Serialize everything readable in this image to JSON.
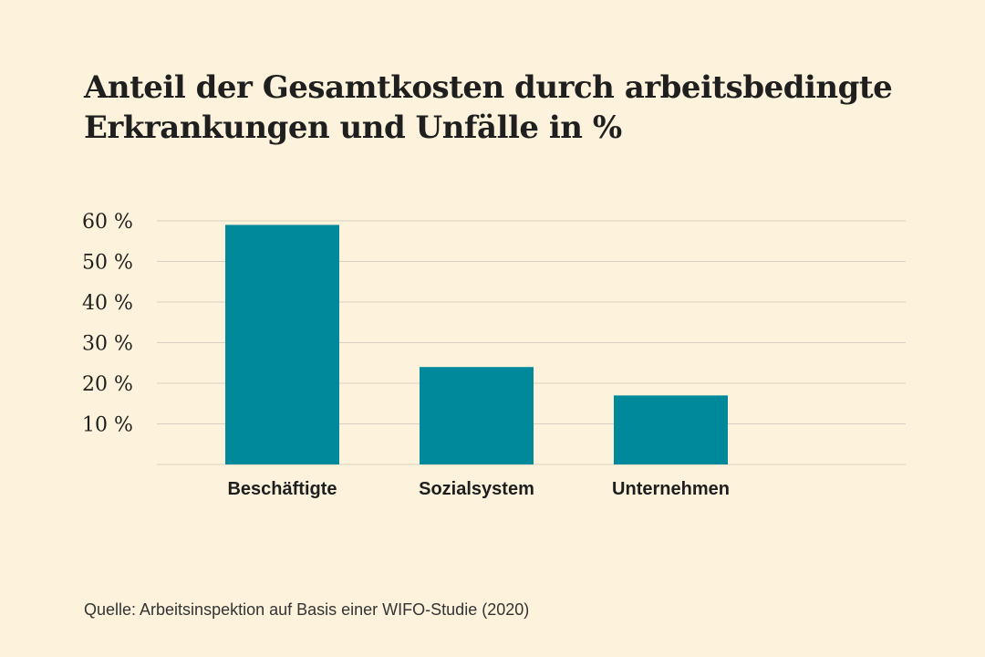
{
  "chart_data": {
    "type": "bar",
    "title": "Anteil der Gesamtkosten durch arbeitsbedingte Erkrankungen und Unfälle in %",
    "categories": [
      "Beschäftigte",
      "Sozialsystem",
      "Unternehmen"
    ],
    "values": [
      59,
      24,
      17
    ],
    "ylim": [
      0,
      60
    ],
    "yticks": [
      10,
      20,
      30,
      40,
      50,
      60
    ],
    "ytick_labels": [
      "10 %",
      "20 %",
      "30 %",
      "40 %",
      "50 %",
      "60 %"
    ],
    "xlabel": "",
    "ylabel": "",
    "grid": true,
    "bar_color": "#00899a",
    "grid_color": "#d6d0c2",
    "source": "Quelle: Arbeitsinspektion auf Basis einer WIFO-Studie (2020)"
  }
}
